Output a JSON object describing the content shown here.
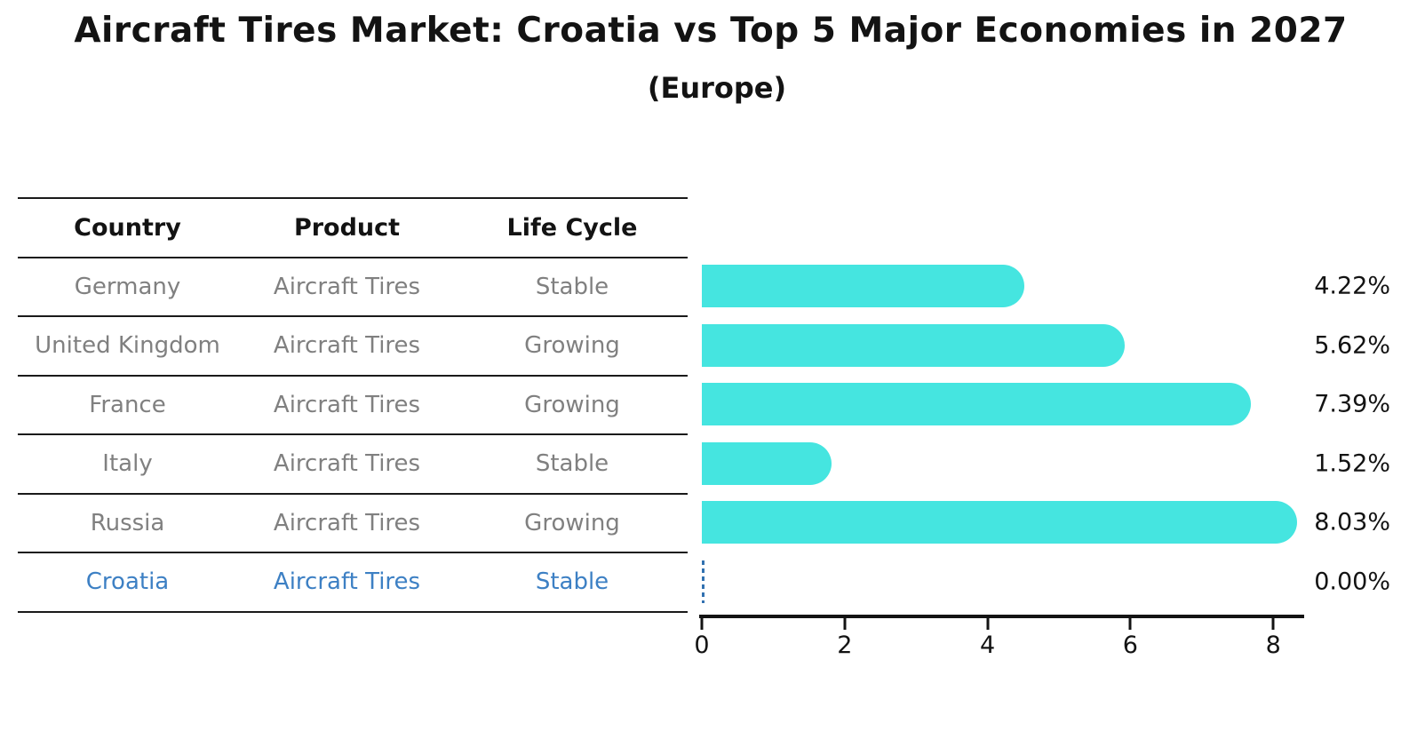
{
  "title": "Aircraft Tires Market: Croatia vs Top 5 Major Economies in 2027",
  "subtitle": "(Europe)",
  "colors": {
    "bar": "#45e5e0",
    "highlight_text": "#3d80c4",
    "dashed_zero_bar": "#3171b0",
    "row_text": "#808080",
    "heading_text": "#131313",
    "table_line": "#1a1a1a"
  },
  "table": {
    "headers": [
      "Country",
      "Product",
      "Life Cycle"
    ],
    "rows": [
      {
        "country": "Germany",
        "product": "Aircraft Tires",
        "life_cycle": "Stable",
        "highlight": false
      },
      {
        "country": "United Kingdom",
        "product": "Aircraft Tires",
        "life_cycle": "Growing",
        "highlight": false
      },
      {
        "country": "France",
        "product": "Aircraft Tires",
        "life_cycle": "Growing",
        "highlight": false
      },
      {
        "country": "Italy",
        "product": "Aircraft Tires",
        "life_cycle": "Stable",
        "highlight": false
      },
      {
        "country": "Russia",
        "product": "Aircraft Tires",
        "life_cycle": "Growing",
        "highlight": false
      },
      {
        "country": "Croatia",
        "product": "Aircraft Tires",
        "life_cycle": "Stable",
        "highlight": true
      }
    ]
  },
  "chart_data": {
    "type": "bar",
    "orientation": "horizontal",
    "title": "Aircraft Tires Market: Croatia vs Top 5 Major Economies in 2027",
    "subtitle": "(Europe)",
    "categories": [
      "Germany",
      "United Kingdom",
      "France",
      "Italy",
      "Russia",
      "Croatia"
    ],
    "values": [
      4.22,
      5.62,
      7.39,
      1.52,
      8.03,
      0.0
    ],
    "labels": [
      "4.22%",
      "5.62%",
      "7.39%",
      "1.52%",
      "8.03%",
      "0.00%"
    ],
    "xticks": [
      0,
      2,
      4,
      6,
      8
    ],
    "xlim": [
      0,
      8.5
    ],
    "xlabel": "",
    "ylabel": "",
    "grid": false,
    "legend": false
  }
}
